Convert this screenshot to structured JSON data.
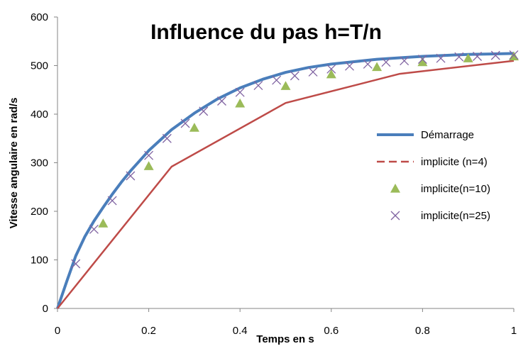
{
  "chart_data": {
    "type": "line",
    "title": "Influence du pas h=T/n",
    "xlabel": "Temps en s",
    "ylabel": "Vitesse angulaire en rad/s",
    "xlim": [
      0,
      1
    ],
    "ylim": [
      0,
      600
    ],
    "x_ticks": [
      "0",
      "0.2",
      "0.4",
      "0.6",
      "0.8",
      "1"
    ],
    "y_ticks": [
      "0",
      "100",
      "200",
      "300",
      "400",
      "500",
      "600"
    ],
    "grid": false,
    "legend_position": "right",
    "series": [
      {
        "name": "Démarrage",
        "style": "line",
        "color": "#4a7ebb",
        "x": [
          0,
          0.02,
          0.04,
          0.06,
          0.08,
          0.1,
          0.12,
          0.14,
          0.16,
          0.18,
          0.2,
          0.25,
          0.3,
          0.35,
          0.4,
          0.45,
          0.5,
          0.55,
          0.6,
          0.65,
          0.7,
          0.75,
          0.8,
          0.85,
          0.9,
          0.95,
          1.0
        ],
        "y": [
          0,
          55,
          108,
          148,
          180,
          208,
          235,
          260,
          283,
          304,
          325,
          368,
          402,
          431,
          454,
          472,
          486,
          496,
          503,
          508,
          513,
          516,
          519,
          521,
          523,
          524,
          525
        ]
      },
      {
        "name": "implicite (n=4)",
        "style": "dashed",
        "color": "#be4b48",
        "x": [
          0,
          0.25,
          0.5,
          0.75,
          1.0
        ],
        "y": [
          0,
          292,
          423,
          483,
          510
        ]
      },
      {
        "name": "implicite(n=10)",
        "style": "triangle",
        "color": "#9bbb59",
        "x": [
          0.1,
          0.2,
          0.3,
          0.4,
          0.5,
          0.6,
          0.7,
          0.8,
          0.9,
          1.0
        ],
        "y": [
          175,
          293,
          372,
          422,
          458,
          482,
          497,
          507,
          515,
          519
        ]
      },
      {
        "name": "implicite(n=25)",
        "style": "x",
        "color": "#8064a2",
        "x": [
          0.04,
          0.08,
          0.12,
          0.16,
          0.2,
          0.24,
          0.28,
          0.32,
          0.36,
          0.4,
          0.44,
          0.48,
          0.52,
          0.56,
          0.6,
          0.64,
          0.68,
          0.72,
          0.76,
          0.8,
          0.84,
          0.88,
          0.92,
          0.96,
          1.0
        ],
        "y": [
          92,
          163,
          222,
          273,
          315,
          350,
          381,
          406,
          427,
          445,
          459,
          470,
          479,
          487,
          493,
          499,
          503,
          507,
          510,
          513,
          515,
          518,
          519,
          521,
          522
        ]
      }
    ]
  }
}
